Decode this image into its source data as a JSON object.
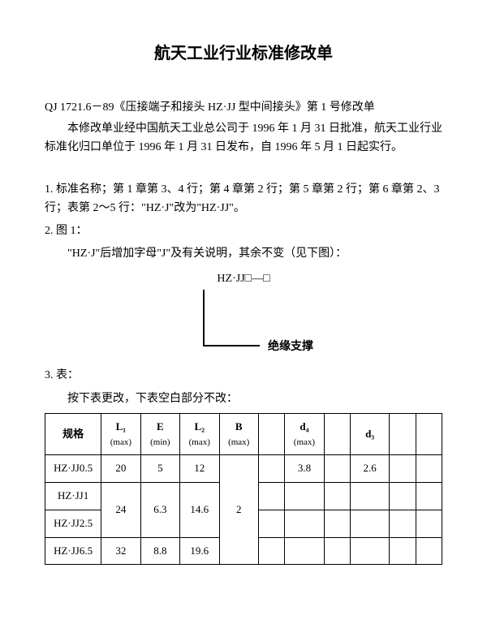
{
  "title": "航天工业行业标准修改单",
  "intro1": "QJ 1721.6－89《压接端子和接头 HZ·JJ 型中间接头》第 1 号修改单",
  "intro2": "本修改单业经中国航天工业总公司于 1996 年 1 月 31 日批准，航天工业行业标准化归口单位于 1996 年 1 月 31 日发布，自 1996 年 5 月 1 日起实行。",
  "item1": "1. 标准名称；第 1 章第 3、4 行；第 4 章第 2 行；第 5 章第 2 行；第 6 章第 2、3 行；表第 2～5 行：\"HZ·J\"改为\"HZ·JJ\"。",
  "item2": "2. 图 1：",
  "item2_desc": "\"HZ·J\"后增加字母\"J\"及有关说明，其余不变（见下图）：",
  "fig_label": "HZ·JJ□—□",
  "diag_label": "绝缘支撑",
  "item3": "3. 表：",
  "table_note": "按下表更改，下表空白部分不改：",
  "headers": {
    "spec": "规格",
    "L1": "L₁",
    "L1_sub": "(max)",
    "E": "E",
    "E_sub": "(min)",
    "L2": "L₂",
    "L2_sub": "(max)",
    "B": "B",
    "B_sub": "(max)",
    "d4": "d₄",
    "d4_sub": "(max)",
    "d3": "d₃"
  },
  "rows": {
    "r0": {
      "spec": "HZ·JJ0.5",
      "L1": "20",
      "E": "5",
      "L2": "12",
      "d4": "3.8",
      "d3": "2.6"
    },
    "r1": {
      "spec": "HZ·JJ1"
    },
    "r2": {
      "spec": "HZ·JJ2.5"
    },
    "merged_12": {
      "L1": "24",
      "E": "6.3",
      "L2": "14.6"
    },
    "B_all": "2",
    "r3": {
      "spec": "HZ·JJ6.5",
      "L1": "32",
      "E": "8.8",
      "L2": "19.6"
    }
  }
}
